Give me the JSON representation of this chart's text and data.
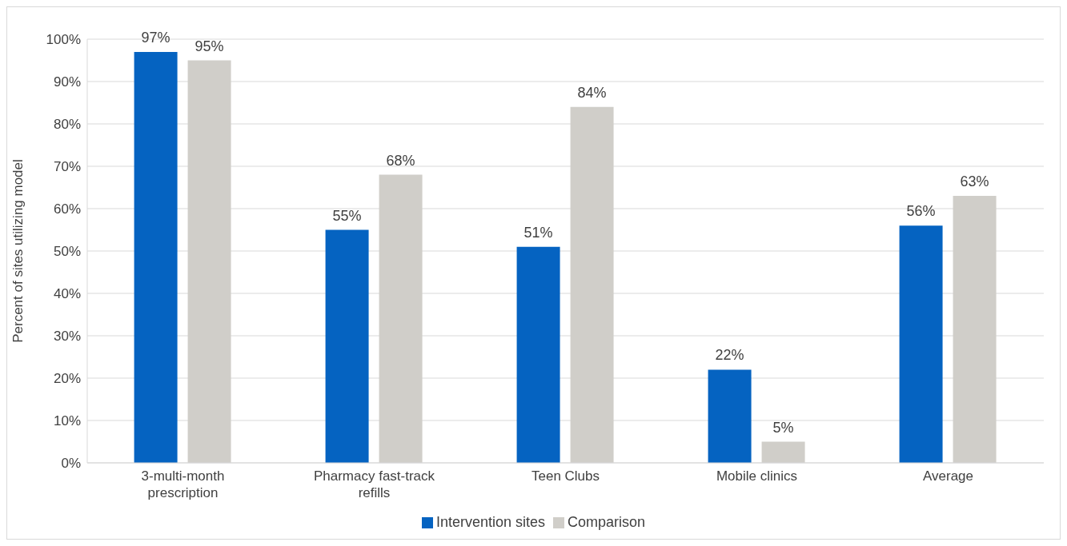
{
  "chart_data": {
    "type": "bar",
    "ylabel": "Percent of sites utilizing model",
    "categories": [
      "3-multi-month prescription",
      "Pharmacy fast-track refills",
      "Teen Clubs",
      "Mobile clinics",
      "Average"
    ],
    "series": [
      {
        "name": "Intervention sites",
        "color": "#0563c1",
        "values": [
          97,
          55,
          51,
          22,
          56
        ],
        "value_labels": [
          "97%",
          "55%",
          "51%",
          "22%",
          "56%"
        ]
      },
      {
        "name": "Comparison",
        "color": "#d0cec9",
        "values": [
          95,
          68,
          84,
          5,
          63
        ],
        "value_labels": [
          "95%",
          "68%",
          "84%",
          "5%",
          "63%"
        ]
      }
    ],
    "ylim": [
      0,
      100
    ],
    "yticks": [
      {
        "value": 0,
        "label": "0%"
      },
      {
        "value": 10,
        "label": "10%"
      },
      {
        "value": 20,
        "label": "20%"
      },
      {
        "value": 30,
        "label": "30%"
      },
      {
        "value": 40,
        "label": "40%"
      },
      {
        "value": 50,
        "label": "50%"
      },
      {
        "value": 60,
        "label": "60%"
      },
      {
        "value": 70,
        "label": "70%"
      },
      {
        "value": 80,
        "label": "80%"
      },
      {
        "value": 90,
        "label": "90%"
      },
      {
        "value": 100,
        "label": "100%"
      }
    ],
    "grid": "y",
    "legend": "bottom"
  }
}
